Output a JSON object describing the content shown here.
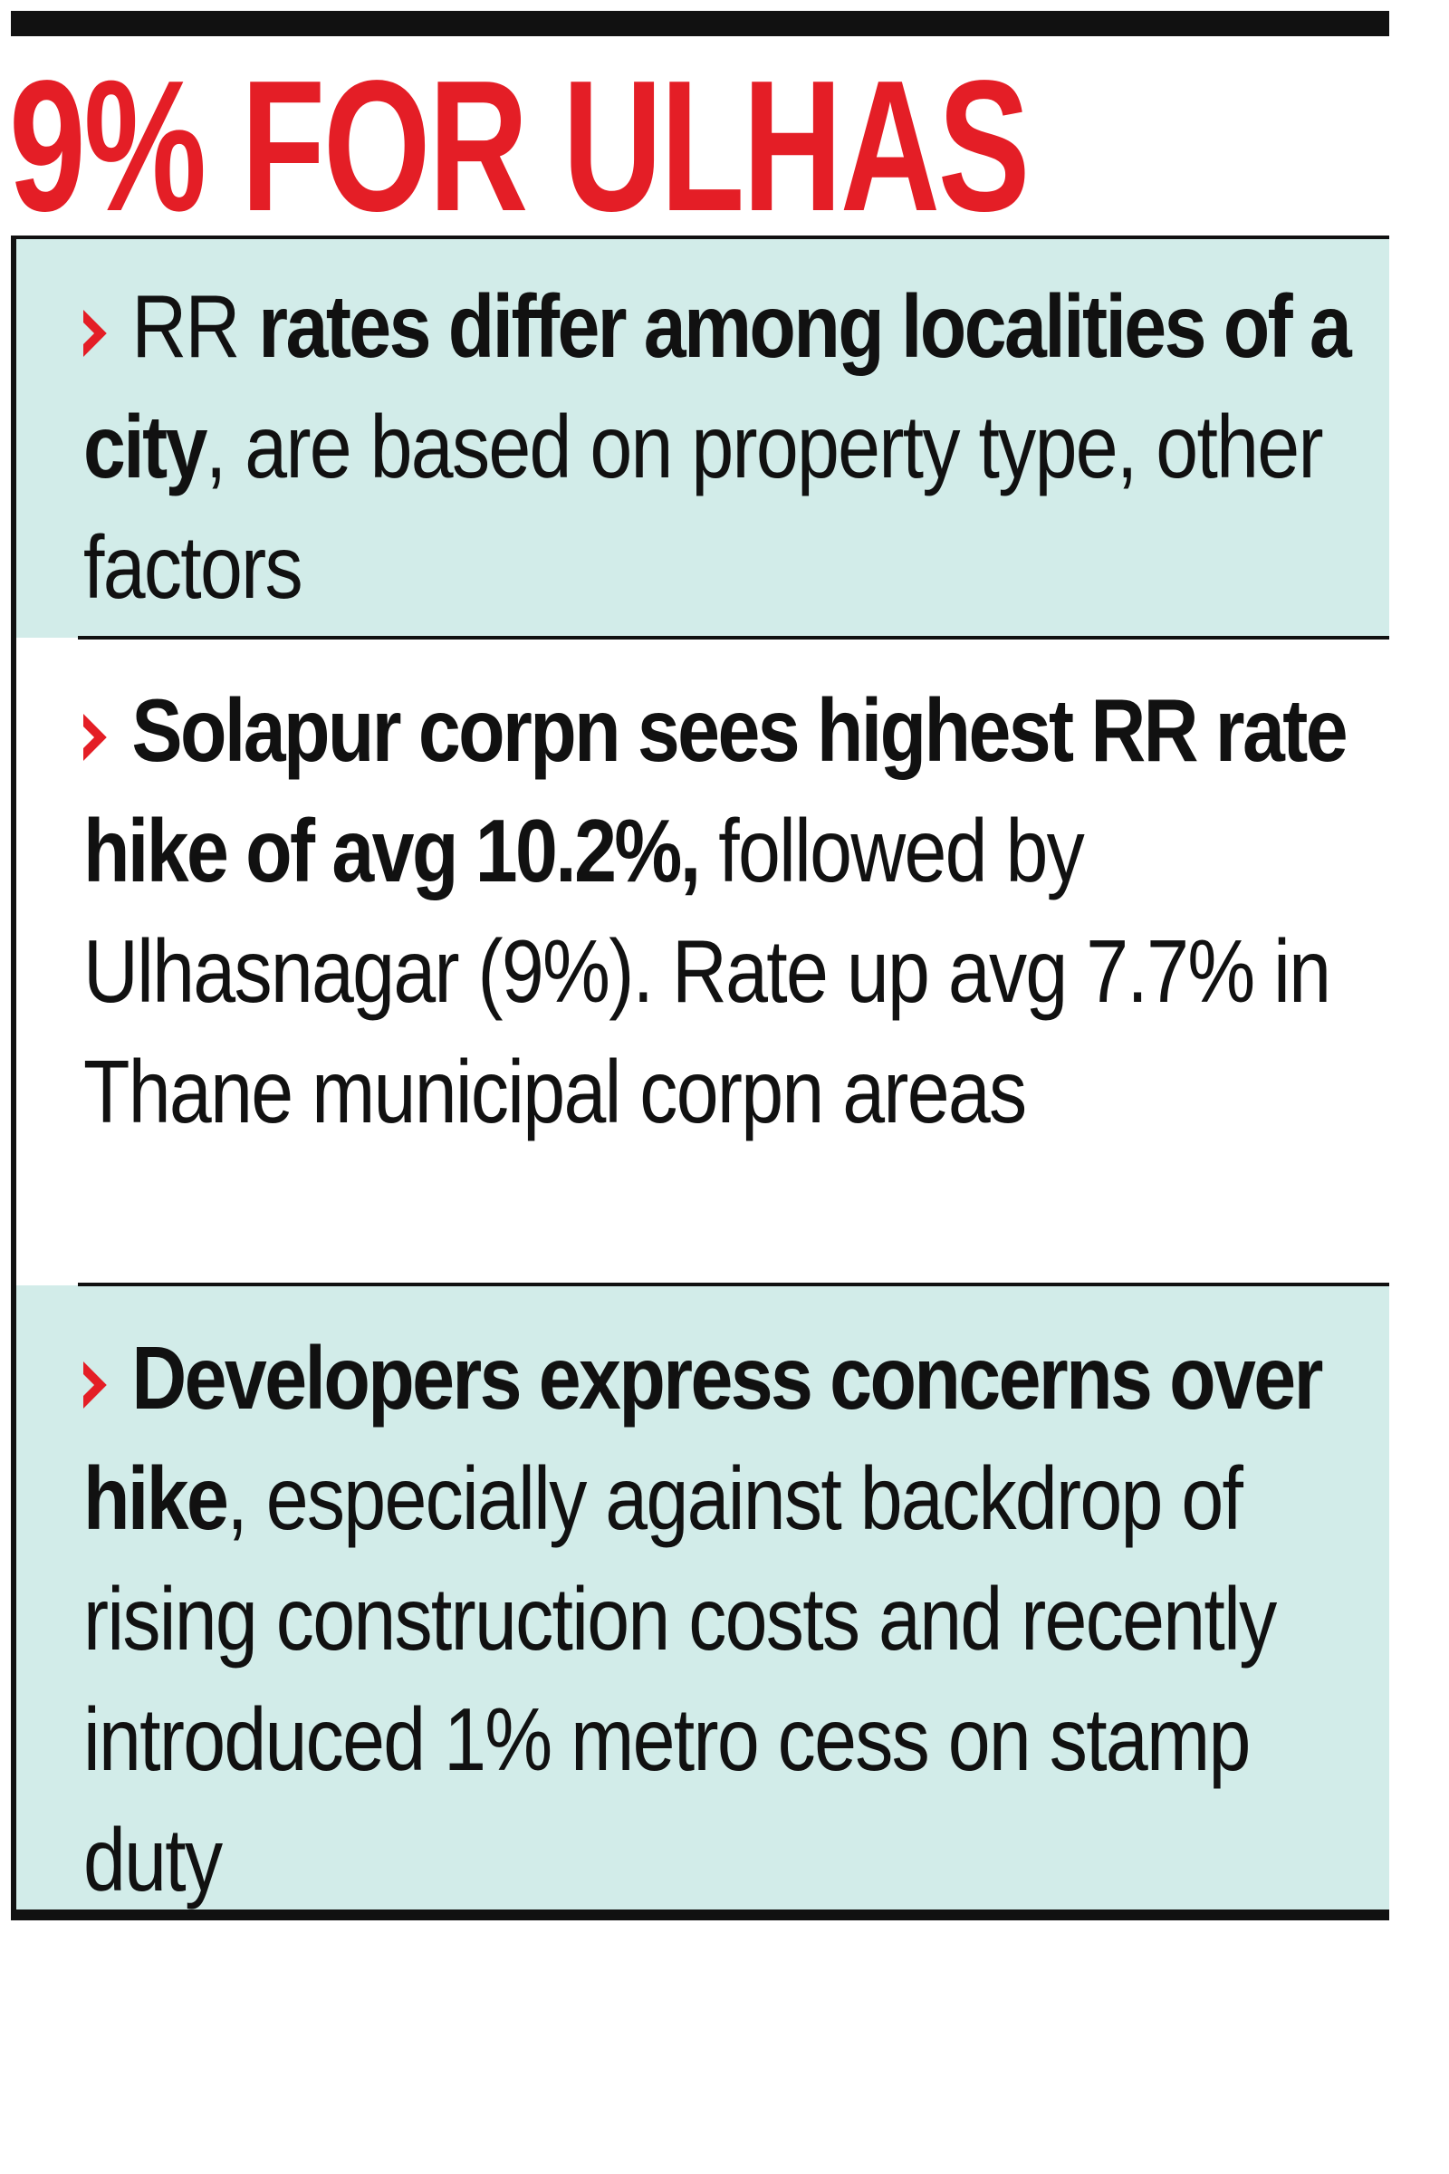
{
  "headline": "9% FOR ULHAS",
  "colors": {
    "headline": "#e41e26",
    "arrow": "#e41e26",
    "tint": "#d2ece9",
    "rule": "#111111",
    "text": "#111111"
  },
  "bullets": [
    {
      "icon": "chevron-right-icon",
      "prefix": "RR ",
      "bold": "rates differ among localities of a city",
      "text": ", are based on property type, other factors"
    },
    {
      "icon": "chevron-right-icon",
      "prefix": "",
      "bold": "Solapur corpn sees highest RR rate hike of avg 10.2%,",
      "text": " followed by Ulhasnagar (9%). Rate up avg 7.7% in Thane municipal corpn areas"
    },
    {
      "icon": "chevron-right-icon",
      "prefix": "",
      "bold": "Developers express concerns over hike",
      "text": ", especially against backdrop of rising construction costs and recently introduced 1% metro cess on stamp duty"
    }
  ]
}
